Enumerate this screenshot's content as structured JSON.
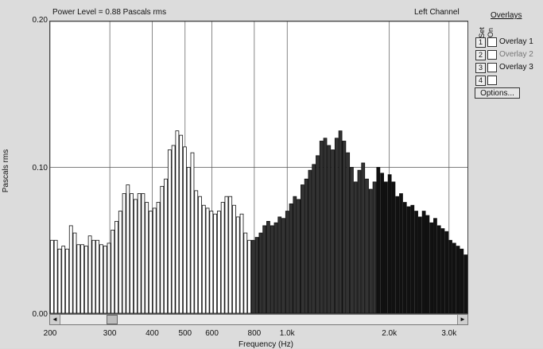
{
  "header": {
    "power_level": "Power Level = 0.88 Pascals rms",
    "channel": "Left Channel"
  },
  "overlays": {
    "title": "Overlays",
    "set_header": "Set",
    "on_header": "On",
    "rows": [
      {
        "num": "1",
        "label": "Overlay 1"
      },
      {
        "num": "2",
        "label": "Overlay 2"
      },
      {
        "num": "3",
        "label": "Overlay 3"
      },
      {
        "num": "4",
        "label": ""
      }
    ],
    "options_label": "Options..."
  },
  "scrollbar": {
    "left_arrow": "◄",
    "right_arrow": "►",
    "thumb_position_fraction": 0.12
  },
  "chart_data": {
    "type": "bar",
    "xlabel": "Frequency (Hz)",
    "ylabel": "Pascals rms",
    "ylim": [
      0,
      0.2
    ],
    "xlim": [
      200,
      3400
    ],
    "x_scale": "log",
    "y_ticks": [
      "0.20",
      "0.10",
      "0.00"
    ],
    "y_tick_values": [
      0.2,
      0.1,
      0.0
    ],
    "x_ticks": [
      "200",
      "300",
      "400",
      "500",
      "600",
      "800",
      "1.0k",
      "2.0k",
      "3.0k"
    ],
    "x_tick_values": [
      200,
      300,
      400,
      500,
      600,
      800,
      1000,
      2000,
      3000
    ],
    "grid": true,
    "values": [
      0.05,
      0.05,
      0.044,
      0.046,
      0.044,
      0.06,
      0.055,
      0.047,
      0.047,
      0.046,
      0.053,
      0.05,
      0.05,
      0.047,
      0.046,
      0.048,
      0.057,
      0.063,
      0.07,
      0.082,
      0.088,
      0.082,
      0.078,
      0.082,
      0.082,
      0.076,
      0.07,
      0.072,
      0.076,
      0.087,
      0.092,
      0.112,
      0.115,
      0.125,
      0.122,
      0.114,
      0.1,
      0.11,
      0.084,
      0.08,
      0.074,
      0.072,
      0.07,
      0.068,
      0.07,
      0.076,
      0.08,
      0.08,
      0.074,
      0.066,
      0.068,
      0.055,
      0.05,
      0.05,
      0.052,
      0.055,
      0.06,
      0.063,
      0.06,
      0.062,
      0.066,
      0.065,
      0.07,
      0.075,
      0.08,
      0.078,
      0.088,
      0.092,
      0.098,
      0.102,
      0.108,
      0.118,
      0.12,
      0.115,
      0.112,
      0.12,
      0.125,
      0.118,
      0.11,
      0.1,
      0.09,
      0.098,
      0.103,
      0.092,
      0.085,
      0.09,
      0.1,
      0.096,
      0.09,
      0.095,
      0.09,
      0.08,
      0.082,
      0.076,
      0.073,
      0.074,
      0.07,
      0.066,
      0.07,
      0.067,
      0.062,
      0.065,
      0.06,
      0.058,
      0.056,
      0.05,
      0.048,
      0.046,
      0.044,
      0.04
    ],
    "fill_shift_index": 53
  }
}
